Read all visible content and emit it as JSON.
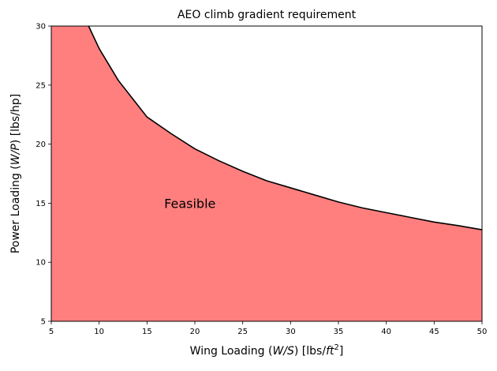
{
  "chart_data": {
    "type": "area",
    "title": "AEO climb gradient requirement",
    "xlabel": {
      "pre": "Wing Loading (",
      "var": "W/S",
      "post": ") [lbs/",
      "unit": "ft",
      "sup": "2",
      "end": "]"
    },
    "ylabel": {
      "pre": "Power Loading (",
      "var": "W/P",
      "post": ") [lbs/hp]"
    },
    "xlim": [
      5,
      50
    ],
    "ylim": [
      5,
      30
    ],
    "xticks": [
      5,
      10,
      15,
      20,
      25,
      30,
      35,
      40,
      45,
      50
    ],
    "yticks": [
      5,
      10,
      15,
      20,
      25,
      30
    ],
    "grid": false,
    "series": [
      {
        "curve_color": "#000000",
        "fill_color": "#ff7f7f",
        "x": [
          5,
          8.9,
          10,
          12,
          15,
          17.5,
          20,
          22.5,
          25,
          27.5,
          30,
          32.5,
          35,
          37.5,
          40,
          42.5,
          45,
          47.5,
          50
        ],
        "y": [
          30,
          30,
          28.1,
          25.4,
          22.3,
          20.9,
          19.6,
          18.6,
          17.7,
          16.9,
          16.3,
          15.7,
          15.1,
          14.6,
          14.2,
          13.8,
          13.4,
          13.1,
          12.75
        ]
      }
    ],
    "annotations": [
      {
        "text": "Feasible",
        "x": 16.8,
        "y": 15.0
      }
    ]
  }
}
